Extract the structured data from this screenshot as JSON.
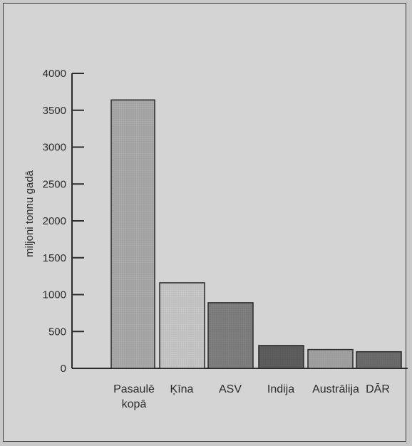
{
  "chart_data": {
    "type": "bar",
    "title": "",
    "xlabel": "",
    "ylabel": "miljoni tonnu gadā",
    "categories": [
      [
        "Pasaulē",
        "kopā"
      ],
      [
        "Ķīna"
      ],
      [
        "ASV"
      ],
      [
        "Indija"
      ],
      [
        "Austrālija"
      ],
      [
        "DĀR"
      ]
    ],
    "values": [
      3640,
      1160,
      890,
      310,
      255,
      225
    ],
    "yticks": [
      "0",
      "500",
      "1000",
      "1500",
      "2000",
      "2500",
      "3000",
      "3500",
      "4000"
    ],
    "ylim": [
      0,
      4000
    ],
    "grid": false,
    "legend": "none",
    "colors": [
      "#a9a9a9",
      "#c7c7c7",
      "#7f7f7f",
      "#5e5e5e",
      "#a2a2a2",
      "#6c6c6c"
    ]
  }
}
